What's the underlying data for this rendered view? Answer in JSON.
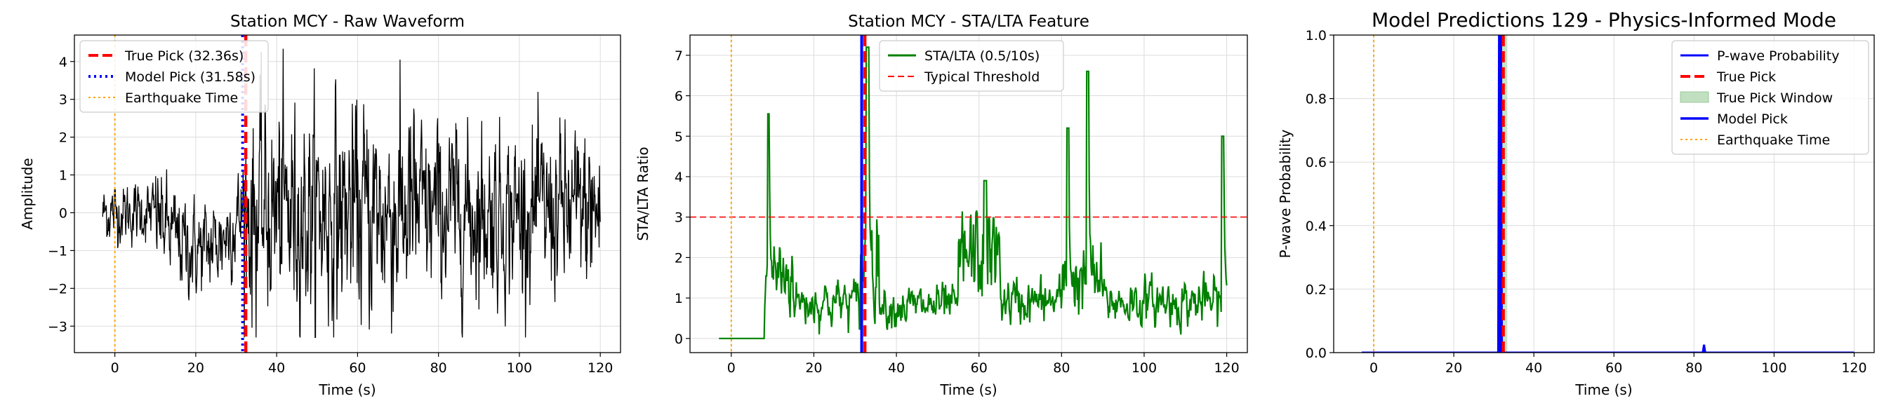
{
  "chart_data": [
    {
      "type": "line",
      "title": "Station MCY - Raw Waveform",
      "xlabel": "Time (s)",
      "ylabel": "Amplitude",
      "xlim": [
        -10,
        125
      ],
      "ylim": [
        -3.7,
        4.7
      ],
      "xticks": [
        0,
        20,
        40,
        60,
        80,
        100,
        120
      ],
      "yticks": [
        -3,
        -2,
        -1,
        0,
        1,
        2,
        3,
        4
      ],
      "grid": true,
      "legend_position": "top-left",
      "legend": [
        "True Pick (32.36s)",
        "Model Pick (31.58s)",
        "Earthquake Time"
      ],
      "series": [
        {
          "role": "waveform",
          "color": "#000000",
          "x_start": -3,
          "x_end": 120,
          "amplitude_range": [
            -3.3,
            4.35
          ]
        }
      ],
      "vlines": [
        {
          "x": 32.36,
          "style": "dashed",
          "color": "#ff0000",
          "legend": "True Pick (32.36s)"
        },
        {
          "x": 31.58,
          "style": "dotted",
          "color": "#0000ff",
          "legend": "Model Pick (31.58s)"
        },
        {
          "x": 0,
          "style": "dotted",
          "color": "#ffa500",
          "legend": "Earthquake Time"
        }
      ]
    },
    {
      "type": "line",
      "title": "Station MCY - STA/LTA Feature",
      "xlabel": "Time (s)",
      "ylabel": "STA/LTA Ratio",
      "xlim": [
        -10,
        125
      ],
      "ylim": [
        -0.35,
        7.5
      ],
      "xticks": [
        0,
        20,
        40,
        60,
        80,
        100,
        120
      ],
      "yticks": [
        0,
        1,
        2,
        3,
        4,
        5,
        6,
        7
      ],
      "grid": true,
      "legend_position": "top-center",
      "legend": [
        "STA/LTA (0.5/10s)",
        "Typical Threshold"
      ],
      "series": [
        {
          "name": "STA/LTA (0.5/10s)",
          "color": "#008000",
          "x_start": -3,
          "x_end": 120
        }
      ],
      "hlines": [
        {
          "y": 3,
          "style": "dashed",
          "color": "#ff0000",
          "legend": "Typical Threshold"
        }
      ],
      "vlines": [
        {
          "x": 31.58,
          "style": "solid",
          "color": "#0000ff"
        },
        {
          "x": 32.36,
          "style": "dashed",
          "color": "#ff0000"
        },
        {
          "x": 0,
          "style": "dotted",
          "color": "#ffa500"
        }
      ]
    },
    {
      "type": "line",
      "title": "Model Predictions 129 - Physics-Informed Mode",
      "xlabel": "Time (s)",
      "ylabel": "P-wave Probability",
      "xlim": [
        -10,
        125
      ],
      "ylim": [
        0,
        1
      ],
      "xticks": [
        0,
        20,
        40,
        60,
        80,
        100,
        120
      ],
      "yticks": [
        0.0,
        0.2,
        0.4,
        0.6,
        0.8,
        1.0
      ],
      "grid": true,
      "legend_position": "top-right",
      "legend": [
        "P-wave Probability",
        "True Pick",
        "True Pick Window",
        "Model Pick",
        "Earthquake Time"
      ],
      "series": [
        {
          "name": "P-wave Probability",
          "color": "#0000ff",
          "x": [
            -3,
            30,
            31.1,
            31.3,
            31.8,
            32.0,
            33.0,
            82.2,
            82.5,
            82.8,
            120
          ],
          "y": [
            0,
            0,
            0,
            1,
            1,
            0,
            0,
            0,
            0.025,
            0,
            0
          ]
        }
      ],
      "spans": [
        {
          "x0": 31.36,
          "x1": 33.36,
          "color": "#98cc98",
          "legend": "True Pick Window"
        }
      ],
      "vlines": [
        {
          "x": 32.36,
          "style": "dashed",
          "color": "#ff0000",
          "legend": "True Pick"
        },
        {
          "x": 31.58,
          "style": "solid",
          "color": "#0000ff",
          "legend": "Model Pick"
        },
        {
          "x": 0,
          "style": "dotted",
          "color": "#ffa500",
          "legend": "Earthquake Time"
        }
      ]
    }
  ]
}
